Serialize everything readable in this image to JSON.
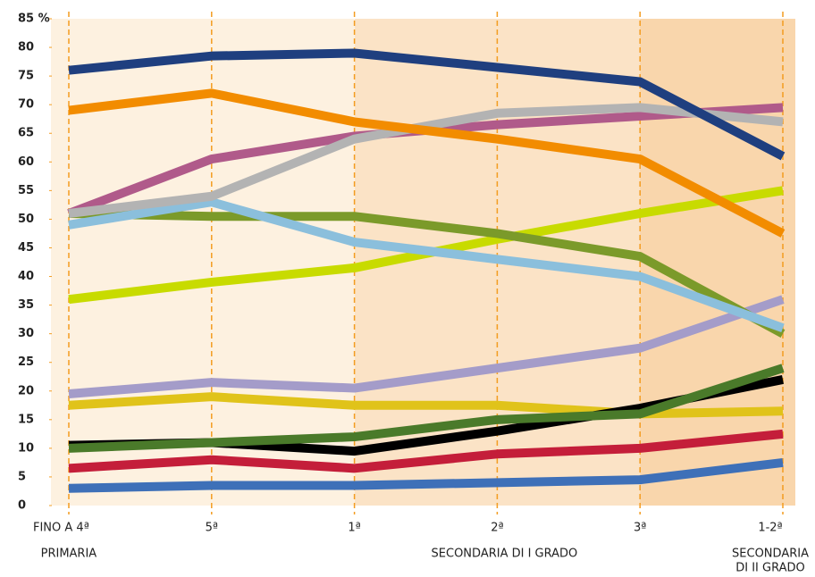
{
  "chart_data": {
    "type": "line",
    "categories": [
      "FINO A 4ª",
      "5ª",
      "1ª",
      "2ª",
      "3ª",
      "1-2ª"
    ],
    "groups": [
      {
        "lines": [
          "PRIMARIA"
        ],
        "from": 0,
        "to": 1
      },
      {
        "lines": [
          "SECONDARIA DI I GRADO"
        ],
        "from": 2,
        "to": 4
      },
      {
        "lines": [
          "SECONDARIA",
          "DI II GRADO"
        ],
        "from": 5,
        "to": 5
      }
    ],
    "ylim": [
      0,
      85
    ],
    "yticks": [
      0,
      5,
      10,
      15,
      20,
      25,
      30,
      35,
      40,
      45,
      50,
      55,
      60,
      65,
      70,
      75,
      80,
      {
        "value": 85,
        "label": "85 %"
      }
    ],
    "series": [
      {
        "color": "#a49cc9",
        "values": [
          19.5,
          21.5,
          20.5,
          24,
          27.5,
          36
        ]
      },
      {
        "color": "#e0c31a",
        "values": [
          17.5,
          19,
          17.5,
          17.5,
          16,
          16.5
        ]
      },
      {
        "color": "#000000",
        "values": [
          10.5,
          11,
          9.5,
          13,
          17,
          22
        ]
      },
      {
        "color": "#4a7a2a",
        "values": [
          10,
          11,
          12,
          15,
          16,
          24
        ]
      },
      {
        "color": "#c41e3a",
        "values": [
          6.5,
          8,
          6.5,
          9,
          10,
          12.5
        ]
      },
      {
        "color": "#3e70b8",
        "values": [
          3,
          3.5,
          3.5,
          4,
          4.5,
          7.5
        ]
      },
      {
        "color": "#c8db00",
        "values": [
          36,
          39,
          41.5,
          46.5,
          51,
          55
        ]
      },
      {
        "color": "#7b9a2a",
        "values": [
          51,
          50.5,
          50.5,
          47.5,
          43.5,
          30
        ]
      },
      {
        "color": "#8bbfdc",
        "values": [
          49,
          53,
          46,
          43,
          40,
          31
        ]
      },
      {
        "color": "#b05a8a",
        "values": [
          51,
          60.5,
          64.5,
          66.5,
          68,
          69.5
        ]
      },
      {
        "color": "#b3b3b3",
        "values": [
          51,
          54,
          64,
          68.5,
          69.5,
          67
        ]
      },
      {
        "color": "#f28c00",
        "values": [
          69,
          72,
          67,
          64,
          60.5,
          47.5
        ]
      },
      {
        "color": "#1f3f7f",
        "values": [
          76,
          78.5,
          79,
          76.5,
          74,
          61
        ]
      }
    ]
  }
}
